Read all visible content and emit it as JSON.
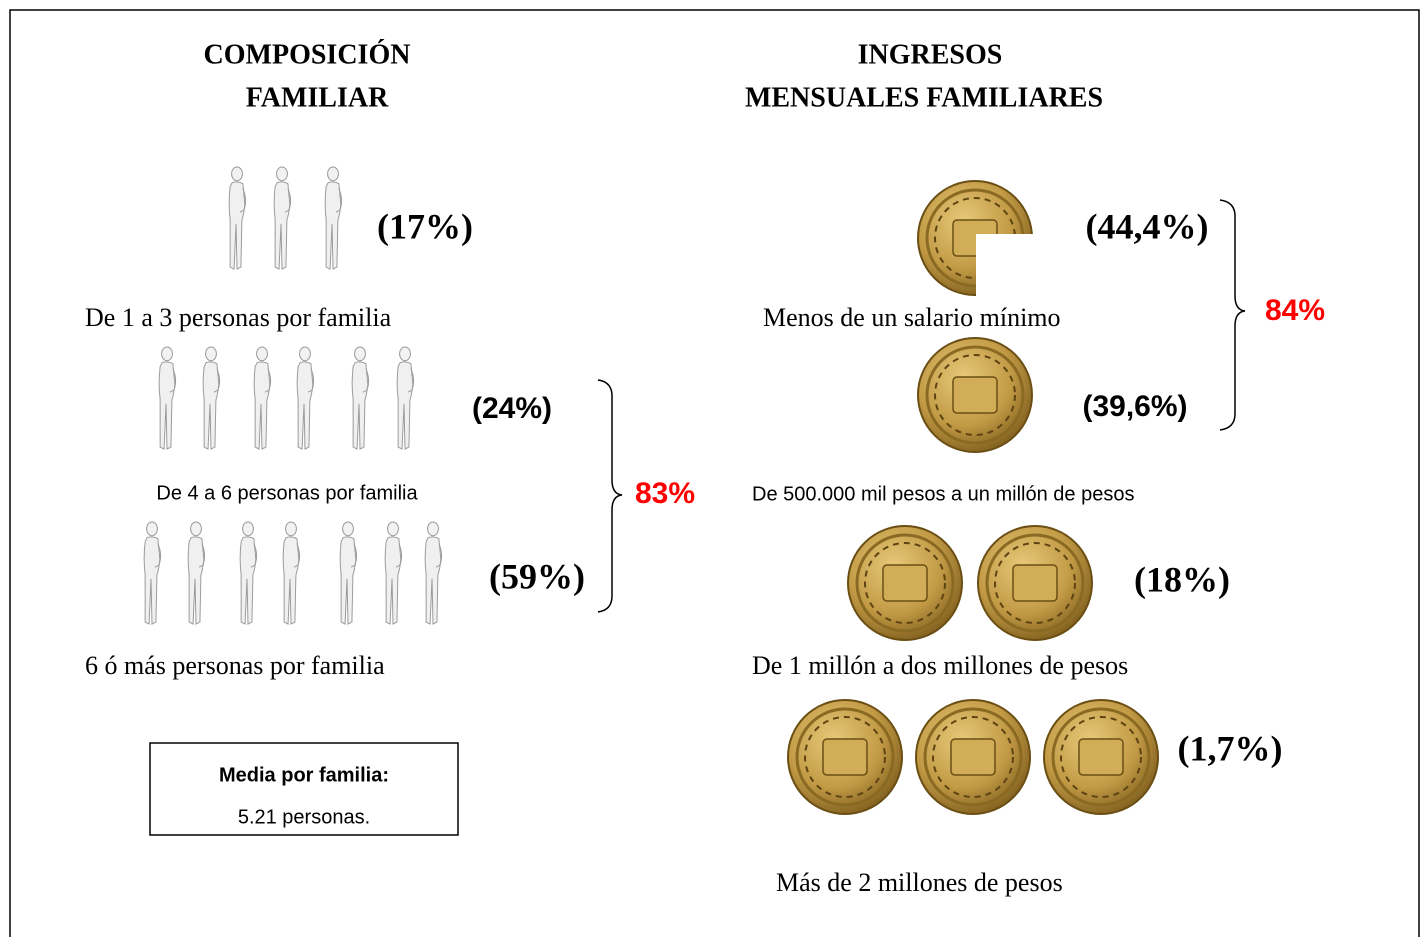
{
  "left": {
    "title_lines": [
      "COMPOSICIÓN",
      "FAMILIAR"
    ],
    "groups": [
      {
        "percent": "(17%)",
        "label": "De 1 a 3 personas por familia"
      },
      {
        "percent": "(24%)",
        "label": "De 4 a 6 personas por familia"
      },
      {
        "percent": "(59%)",
        "label": "6 ó más personas por familia"
      }
    ],
    "total": "83%",
    "summary": {
      "heading": "Media por familia:",
      "value": "5.21 personas."
    }
  },
  "right": {
    "title_lines": [
      "INGRESOS",
      "MENSUALES FAMILIARES"
    ],
    "groups": [
      {
        "percent": "(44,4%)",
        "label": "Menos de un salario mínimo"
      },
      {
        "percent": "(39,6%)",
        "label": "De 500.000 mil pesos a un millón de pesos"
      },
      {
        "percent": "(18%)",
        "label": "De 1 millón a dos millones de pesos"
      },
      {
        "percent": "(1,7%)",
        "label": "Más de 2 millones de pesos"
      }
    ],
    "total": "84%"
  }
}
